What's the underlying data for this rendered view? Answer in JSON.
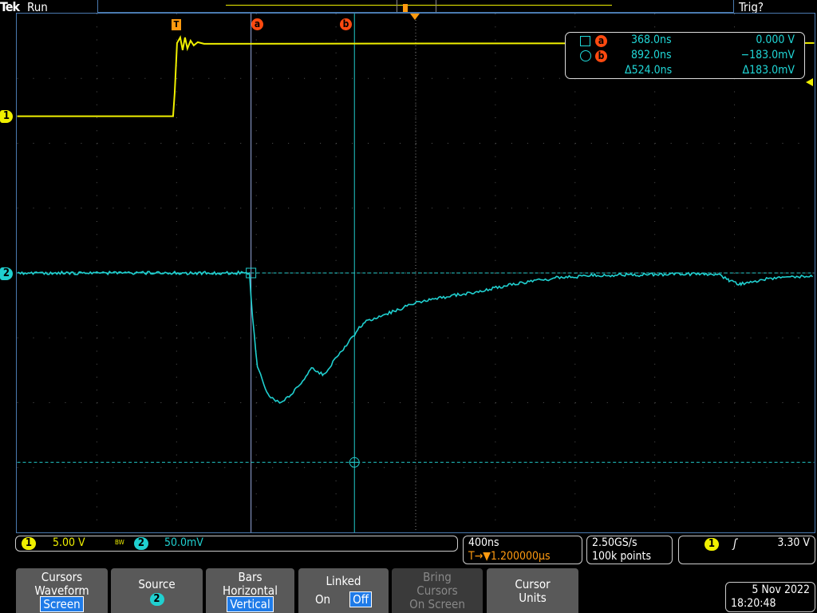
{
  "header": {
    "brand": "Tek",
    "state": "Run",
    "trigger_status": "Trig?"
  },
  "colors": {
    "ch1": "#f0f000",
    "ch2": "#20d0d0",
    "cursor_marker": "#ff4a10",
    "trigger": "#ff9a10"
  },
  "channels": [
    {
      "number": "1",
      "scale": "5.00 V",
      "bandwidth_icon": "BW"
    },
    {
      "number": "2",
      "scale": "50.0mV"
    }
  ],
  "cursors": {
    "a": {
      "label": "a",
      "time": "368.0ns",
      "value": "0.000 V"
    },
    "b": {
      "label": "b",
      "time": "892.0ns",
      "value": "−183.0mV"
    },
    "delta_time": "Δ524.0ns",
    "delta_value": "Δ183.0mV"
  },
  "markers": {
    "trigger": "T",
    "ch1": "1",
    "ch2": "2"
  },
  "horizontal": {
    "scale": "400ns",
    "delay": "T→▼1.200000µs"
  },
  "acquisition": {
    "sample_rate": "2.50GS/s",
    "record_length": "100k points"
  },
  "trigger": {
    "source": "1",
    "slope": "rising-edge-icon",
    "level": "3.30 V"
  },
  "softkeys": [
    {
      "title": "Cursors\nWaveform",
      "value": "Screen"
    },
    {
      "title": "Source",
      "value": "2"
    },
    {
      "title": "Bars\nHorizontal",
      "value": "Vertical"
    },
    {
      "title": "Linked",
      "on": "On",
      "off": "Off"
    },
    {
      "title": "Bring\nCursors\nOn Screen",
      "disabled": true
    },
    {
      "title": "Cursor\nUnits"
    }
  ],
  "datetime": {
    "date": "5 Nov 2022",
    "time": "18:20:48"
  }
}
